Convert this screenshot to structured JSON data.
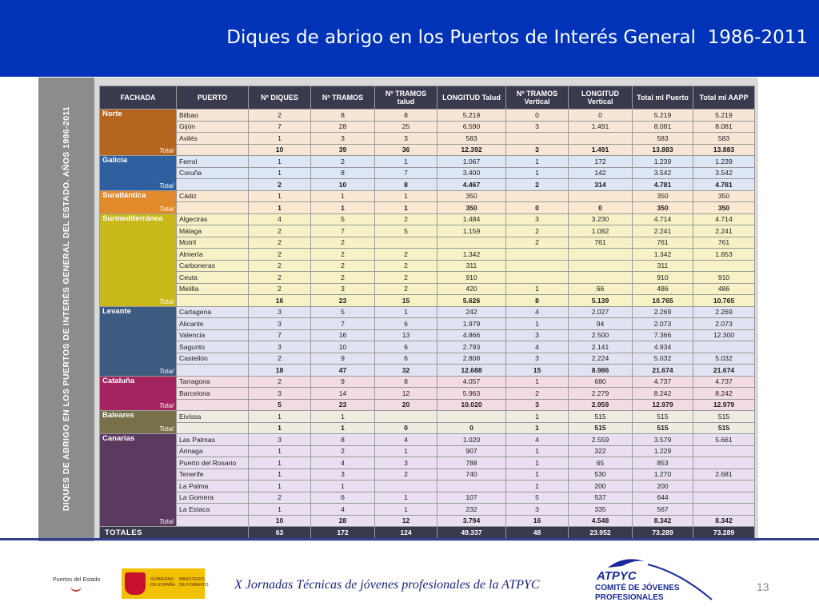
{
  "header": {
    "title": "Diques de abrigo en los Puertos de Interés General  1986-2011"
  },
  "side_title": "DIQUES DE ABRIGO EN LOS PUERTOS DE INTERÉS GENERAL DEL ESTADO. AÑOS 1986-2011",
  "columns": [
    "FACHADA",
    "PUERTO",
    "Nº DIQUES",
    "Nº TRAMOS",
    "Nº TRAMOS talud",
    "LONGITUD Talud",
    "Nº TRAMOS Vertical",
    "LONGITUD Vertical",
    "Total ml Puerto",
    "Total ml AAPP"
  ],
  "total_label": "Total",
  "groups": [
    {
      "name": "Norte",
      "color": "#b5651d",
      "tint": "#f7e6d6",
      "rows": [
        [
          "Bilbao",
          "2",
          "8",
          "8",
          "5.219",
          "0",
          "0",
          "5.219",
          "5.219"
        ],
        [
          "Gijón",
          "7",
          "28",
          "25",
          "6.590",
          "3",
          "1.491",
          "8.081",
          "8.081"
        ],
        [
          "Avilés",
          "1",
          "3",
          "3",
          "583",
          "",
          "",
          "583",
          "583"
        ]
      ],
      "total": [
        "10",
        "39",
        "36",
        "12.392",
        "3",
        "1.491",
        "13.883",
        "13.883"
      ]
    },
    {
      "name": "Galicia",
      "color": "#2f5f9e",
      "tint": "#dde6f5",
      "rows": [
        [
          "Ferrol",
          "1",
          "2",
          "1",
          "1.067",
          "1",
          "172",
          "1.239",
          "1.239"
        ],
        [
          "Coruña",
          "1",
          "8",
          "7",
          "3.400",
          "1",
          "142",
          "3.542",
          "3.542"
        ]
      ],
      "total": [
        "2",
        "10",
        "8",
        "4.467",
        "2",
        "314",
        "4.781",
        "4.781"
      ]
    },
    {
      "name": "Suratlántica",
      "color": "#e08a2c",
      "tint": "#fbe8d2",
      "rows": [
        [
          "Cádiz",
          "1",
          "1",
          "1",
          "350",
          "",
          "",
          "350",
          "350"
        ]
      ],
      "total": [
        "1",
        "1",
        "1",
        "350",
        "0",
        "0",
        "350",
        "350"
      ]
    },
    {
      "name": "Surmediterránea",
      "color": "#c9b81a",
      "tint": "#f7f2c6",
      "rows": [
        [
          "Algeciras",
          "4",
          "5",
          "2",
          "1.484",
          "3",
          "3.230",
          "4.714",
          "4.714"
        ],
        [
          "Málaga",
          "2",
          "7",
          "5",
          "1.159",
          "2",
          "1.082",
          "2.241",
          "2.241"
        ],
        [
          "Motril",
          "2",
          "2",
          "",
          "",
          "2",
          "761",
          "761",
          "761"
        ],
        [
          "Almería",
          "2",
          "2",
          "2",
          "1.342",
          "",
          "",
          "1.342",
          "1.653"
        ],
        [
          "Carboneras",
          "2",
          "2",
          "2",
          "311",
          "",
          "",
          "311",
          ""
        ],
        [
          "Ceuta",
          "2",
          "2",
          "2",
          "910",
          "",
          "",
          "910",
          "910"
        ],
        [
          "Melilla",
          "2",
          "3",
          "2",
          "420",
          "1",
          "66",
          "486",
          "486"
        ]
      ],
      "total": [
        "16",
        "23",
        "15",
        "5.626",
        "8",
        "5.139",
        "10.765",
        "10.765"
      ]
    },
    {
      "name": "Levante",
      "color": "#3d5a80",
      "tint": "#e2e3f2",
      "rows": [
        [
          "Cartagena",
          "3",
          "5",
          "1",
          "242",
          "4",
          "2.027",
          "2.269",
          "2.269"
        ],
        [
          "Alicante",
          "3",
          "7",
          "6",
          "1.979",
          "1",
          "94",
          "2.073",
          "2.073"
        ],
        [
          "Valencia",
          "7",
          "16",
          "13",
          "4.866",
          "3",
          "2.500",
          "7.366",
          "12.300"
        ],
        [
          "Sagunto",
          "3",
          "10",
          "6",
          "2.793",
          "4",
          "2.141",
          "4.934",
          ""
        ],
        [
          "Castellón",
          "2",
          "9",
          "6",
          "2.808",
          "3",
          "2.224",
          "5.032",
          "5.032"
        ]
      ],
      "total": [
        "18",
        "47",
        "32",
        "12.688",
        "15",
        "8.986",
        "21.674",
        "21.674"
      ]
    },
    {
      "name": "Cataluña",
      "color": "#a3245e",
      "tint": "#f3dbe6",
      "rows": [
        [
          "Tarragona",
          "2",
          "9",
          "8",
          "4.057",
          "1",
          "680",
          "4.737",
          "4.737"
        ],
        [
          "Barcelona",
          "3",
          "14",
          "12",
          "5.963",
          "2",
          "2.279",
          "8.242",
          "8.242"
        ]
      ],
      "total": [
        "5",
        "23",
        "20",
        "10.020",
        "3",
        "2.959",
        "12.979",
        "12.979"
      ]
    },
    {
      "name": "Baleares",
      "color": "#77704a",
      "tint": "#eeece0",
      "rows": [
        [
          "Eivissa",
          "1",
          "1",
          "",
          "",
          "1",
          "515",
          "515",
          "515"
        ]
      ],
      "total": [
        "1",
        "1",
        "0",
        "0",
        "1",
        "515",
        "515",
        "515"
      ]
    },
    {
      "name": "Canarias",
      "color": "#5b3a5f",
      "tint": "#e9dff0",
      "rows": [
        [
          "Las Palmas",
          "3",
          "8",
          "4",
          "1.020",
          "4",
          "2.559",
          "3.579",
          "5.661"
        ],
        [
          "Arinaga",
          "1",
          "2",
          "1",
          "907",
          "1",
          "322",
          "1.229",
          ""
        ],
        [
          "Puerto del Rosario",
          "1",
          "4",
          "3",
          "788",
          "1",
          "65",
          "853",
          ""
        ],
        [
          "Tenerife",
          "1",
          "3",
          "2",
          "740",
          "1",
          "530",
          "1.270",
          "2.681"
        ],
        [
          "La Palma",
          "1",
          "1",
          "",
          "",
          "1",
          "200",
          "200",
          ""
        ],
        [
          "La Gomera",
          "2",
          "6",
          "1",
          "107",
          "5",
          "537",
          "644",
          ""
        ],
        [
          "La Estaca",
          "1",
          "4",
          "1",
          "232",
          "3",
          "335",
          "567",
          ""
        ]
      ],
      "total": [
        "10",
        "28",
        "12",
        "3.794",
        "16",
        "4.548",
        "8.342",
        "8.342"
      ]
    }
  ],
  "totals": {
    "label": "TOTALES",
    "values": [
      "63",
      "172",
      "124",
      "49.337",
      "48",
      "23.952",
      "73.289",
      "73.289"
    ]
  },
  "footer": {
    "text": "X Jornadas Técnicas de jóvenes profesionales de la ATPYC",
    "page": "13",
    "logo_puertos": "Puertos del Estado",
    "logo_gob_1": "GOBIERNO\nDE ESPAÑA",
    "logo_gob_2": "MINISTERIO\nDE FOMENTO",
    "logo_atpyc_1": "ATPYC",
    "logo_atpyc_2": "COMITÉ DE JÓVENES\nPROFESIONALES"
  }
}
